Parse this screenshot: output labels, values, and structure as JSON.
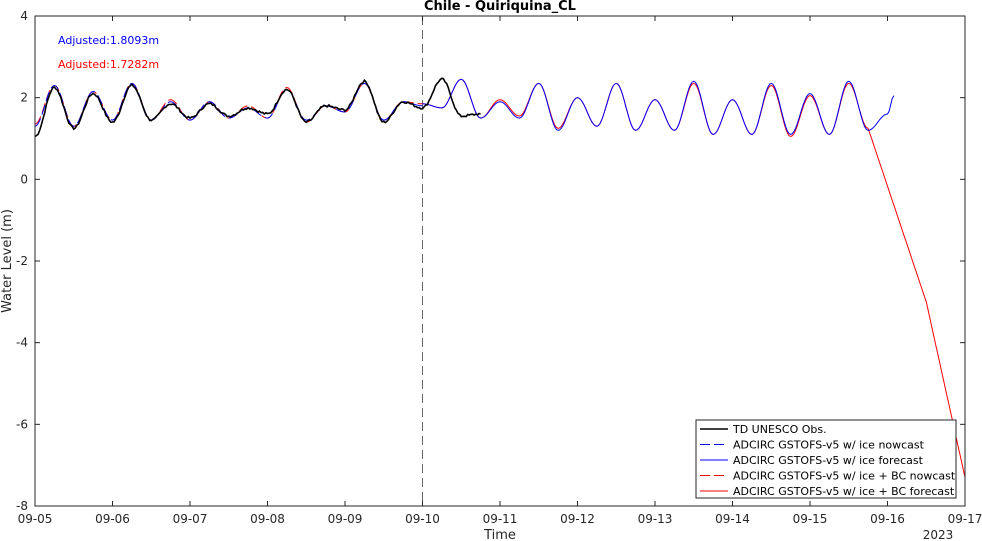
{
  "chart_data": {
    "type": "line",
    "title": "Chile - Quiriquina_CL",
    "xlabel": "Time",
    "ylabel": "Water Level (m)",
    "year_label": "2023",
    "x_ticks": [
      "09-05",
      "09-06",
      "09-07",
      "09-08",
      "09-09",
      "09-10",
      "09-11",
      "09-12",
      "09-13",
      "09-14",
      "09-15",
      "09-16",
      "09-17"
    ],
    "y_ticks": [
      4,
      2,
      0,
      -2,
      -4,
      -6,
      -8
    ],
    "xlim": [
      "2023-09-05",
      "2023-09-17"
    ],
    "ylim": [
      -8,
      4
    ],
    "nowcast_forecast_divider": "2023-09-10",
    "annotations": [
      {
        "text": "Adjusted:1.8093m",
        "color": "#0000ff"
      },
      {
        "text": "Adjusted:1.7282m",
        "color": "#ff0000"
      }
    ],
    "legend_position": "bottom-right",
    "series": [
      {
        "name": "TD UNESCO Obs.",
        "color": "#000000",
        "style": "solid",
        "x": [
          "09-05 00:00",
          "09-05 06:00",
          "09-05 12:00",
          "09-05 18:00",
          "09-06 00:00",
          "09-06 06:00",
          "09-06 12:00",
          "09-06 18:00",
          "09-07 00:00",
          "09-07 06:00",
          "09-07 12:00",
          "09-07 18:00",
          "09-08 00:00",
          "09-08 06:00",
          "09-08 12:00",
          "09-08 18:00",
          "09-09 00:00",
          "09-09 06:00",
          "09-09 12:00",
          "09-09 18:00",
          "09-10 00:00",
          "09-10 06:00",
          "09-10 12:00",
          "09-10 18:00"
        ],
        "y": [
          1.05,
          2.25,
          1.25,
          2.1,
          1.4,
          2.3,
          1.45,
          1.85,
          1.5,
          1.85,
          1.55,
          1.75,
          1.6,
          2.2,
          1.4,
          1.8,
          1.7,
          2.4,
          1.4,
          1.9,
          1.75,
          2.45,
          1.55,
          1.6
        ]
      },
      {
        "name": "ADCIRC GSTOFS-v5 w/ ice nowcast",
        "color": "#0000ff",
        "style": "dashed",
        "x": [
          "09-05 00:00",
          "09-05 06:00",
          "09-05 12:00",
          "09-05 18:00",
          "09-06 00:00",
          "09-06 06:00",
          "09-06 12:00",
          "09-06 18:00",
          "09-07 00:00",
          "09-07 06:00",
          "09-07 12:00",
          "09-07 18:00",
          "09-08 00:00",
          "09-08 06:00",
          "09-08 12:00",
          "09-08 18:00",
          "09-09 00:00",
          "09-09 06:00",
          "09-09 12:00",
          "09-09 18:00",
          "09-10 00:00"
        ],
        "y": [
          1.3,
          2.3,
          1.3,
          2.15,
          1.45,
          2.35,
          1.45,
          1.9,
          1.45,
          1.9,
          1.5,
          1.75,
          1.5,
          2.2,
          1.45,
          1.8,
          1.65,
          2.35,
          1.45,
          1.9,
          1.8
        ]
      },
      {
        "name": "ADCIRC GSTOFS-v5 w/ ice forecast",
        "color": "#0000ff",
        "style": "solid",
        "x": [
          "09-10 00:00",
          "09-10 06:00",
          "09-10 12:00",
          "09-10 18:00",
          "09-11 00:00",
          "09-11 06:00",
          "09-11 12:00",
          "09-11 18:00",
          "09-12 00:00",
          "09-12 06:00",
          "09-12 12:00",
          "09-12 18:00",
          "09-13 00:00",
          "09-13 06:00",
          "09-13 12:00",
          "09-13 18:00",
          "09-14 00:00",
          "09-14 06:00",
          "09-14 12:00",
          "09-14 18:00",
          "09-15 00:00",
          "09-15 06:00",
          "09-15 12:00",
          "09-15 18:00",
          "09-16 00:00",
          "09-16 02:00"
        ],
        "y": [
          1.85,
          1.75,
          2.45,
          1.5,
          1.9,
          1.5,
          2.35,
          1.2,
          2.0,
          1.3,
          2.35,
          1.2,
          1.95,
          1.2,
          2.4,
          1.1,
          1.95,
          1.1,
          2.35,
          1.1,
          2.1,
          1.1,
          2.4,
          1.2,
          1.6,
          2.05
        ]
      },
      {
        "name": "ADCIRC GSTOFS-v5 w/ ice + BC nowcast",
        "color": "#ff0000",
        "style": "dashed",
        "x": [
          "09-05 00:00",
          "09-05 06:00",
          "09-05 12:00",
          "09-05 18:00",
          "09-06 00:00",
          "09-06 06:00",
          "09-06 12:00",
          "09-06 18:00",
          "09-07 00:00",
          "09-07 06:00",
          "09-07 12:00",
          "09-07 18:00",
          "09-08 00:00",
          "09-08 06:00",
          "09-08 12:00",
          "09-08 18:00",
          "09-09 00:00",
          "09-09 06:00",
          "09-09 12:00",
          "09-09 18:00",
          "09-10 00:00"
        ],
        "y": [
          1.35,
          2.3,
          1.3,
          2.15,
          1.45,
          2.35,
          1.45,
          1.95,
          1.45,
          1.9,
          1.5,
          1.8,
          1.5,
          2.25,
          1.4,
          1.8,
          1.65,
          2.35,
          1.45,
          1.9,
          1.85
        ]
      },
      {
        "name": "ADCIRC GSTOFS-v5 w/ ice + BC forecast",
        "color": "#ff0000",
        "style": "solid",
        "x": [
          "09-10 00:00",
          "09-10 06:00",
          "09-10 12:00",
          "09-10 18:00",
          "09-11 00:00",
          "09-11 06:00",
          "09-11 12:00",
          "09-11 18:00",
          "09-12 00:00",
          "09-12 06:00",
          "09-12 12:00",
          "09-12 18:00",
          "09-13 00:00",
          "09-13 06:00",
          "09-13 12:00",
          "09-13 18:00",
          "09-14 00:00",
          "09-14 06:00",
          "09-14 12:00",
          "09-14 18:00",
          "09-15 00:00",
          "09-15 06:00",
          "09-15 12:00",
          "09-15 18:00",
          "09-16 12:00",
          "09-17 00:00"
        ],
        "y": [
          1.85,
          1.75,
          2.45,
          1.5,
          1.95,
          1.55,
          2.35,
          1.25,
          2.0,
          1.3,
          2.35,
          1.2,
          1.95,
          1.2,
          2.35,
          1.1,
          1.95,
          1.1,
          2.3,
          1.05,
          2.05,
          1.1,
          2.35,
          1.25,
          -3.0,
          -7.3
        ]
      }
    ]
  }
}
